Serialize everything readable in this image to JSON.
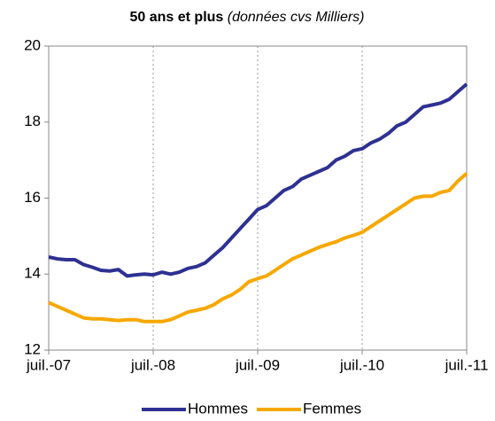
{
  "chart_data": {
    "type": "line",
    "title": "50 ans et plus",
    "subtitle": "(données cvs Milliers)",
    "categories": [
      "juil.-07",
      null,
      null,
      null,
      null,
      null,
      null,
      null,
      null,
      null,
      null,
      null,
      "juil.-08",
      null,
      null,
      null,
      null,
      null,
      null,
      null,
      null,
      null,
      null,
      null,
      "juil.-09",
      null,
      null,
      null,
      null,
      null,
      null,
      null,
      null,
      null,
      null,
      null,
      "juil.-10",
      null,
      null,
      null,
      null,
      null,
      null,
      null,
      null,
      null,
      null,
      null,
      "juil.-11"
    ],
    "series": [
      {
        "name": "Hommes",
        "color": "#2e3192",
        "values": [
          14.45,
          14.4,
          14.38,
          14.38,
          14.25,
          14.18,
          14.1,
          14.08,
          14.12,
          13.95,
          13.98,
          14.0,
          13.98,
          14.05,
          14.0,
          14.05,
          14.15,
          14.2,
          14.3,
          14.5,
          14.7,
          14.95,
          15.2,
          15.45,
          15.7,
          15.8,
          16.0,
          16.2,
          16.3,
          16.5,
          16.6,
          16.7,
          16.8,
          17.0,
          17.1,
          17.25,
          17.3,
          17.45,
          17.55,
          17.7,
          17.9,
          18.0,
          18.2,
          18.4,
          18.45,
          18.5,
          18.6,
          18.8,
          19.0
        ]
      },
      {
        "name": "Femmes",
        "color": "#f7a800",
        "values": [
          13.25,
          13.15,
          13.05,
          12.95,
          12.85,
          12.82,
          12.82,
          12.8,
          12.78,
          12.8,
          12.8,
          12.75,
          12.75,
          12.75,
          12.8,
          12.9,
          13.0,
          13.05,
          13.1,
          13.2,
          13.35,
          13.45,
          13.6,
          13.8,
          13.88,
          13.95,
          14.1,
          14.25,
          14.4,
          14.5,
          14.6,
          14.7,
          14.78,
          14.85,
          14.95,
          15.02,
          15.1,
          15.25,
          15.4,
          15.55,
          15.7,
          15.85,
          16.0,
          16.05,
          16.05,
          16.15,
          16.2,
          16.45,
          16.65
        ]
      }
    ],
    "ylim": [
      12,
      20
    ],
    "yticks": [
      12,
      14,
      16,
      18,
      20
    ],
    "grid": true,
    "legend": "bottom"
  }
}
